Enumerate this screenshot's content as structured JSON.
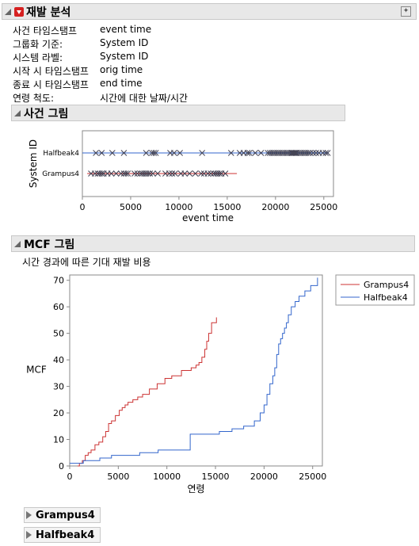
{
  "report": {
    "title": "재발 분석",
    "info": [
      {
        "key": "사건 타임스탬프",
        "value": "event time"
      },
      {
        "key": "그룹화 기준:",
        "value": "System ID"
      },
      {
        "key": "시스템 라벨:",
        "value": "System ID"
      },
      {
        "key": "시작 시 타임스탬프",
        "value": "orig time"
      },
      {
        "key": "종료 시 타임스탬프",
        "value": "end time"
      },
      {
        "key": "연령 척도:",
        "value": "시간에 대한 날짜/시간"
      }
    ]
  },
  "event_section": {
    "title": "사건 그림"
  },
  "mcf_section": {
    "title": "MCF 그림",
    "subtitle": "시간 경과에 따른 기대 재발 비용"
  },
  "groups": [
    {
      "label": "Grampus4"
    },
    {
      "label": "Halfbeak4"
    }
  ],
  "colors": {
    "grampus": "#cc3333",
    "halfbeak": "#3366cc"
  },
  "chart_data": [
    {
      "type": "scatter",
      "title": "",
      "xlabel": "event time",
      "ylabel": "System ID",
      "xlim": [
        0,
        26000
      ],
      "xticks": [
        0,
        5000,
        10000,
        15000,
        20000,
        25000
      ],
      "categories": [
        "Halfbeak4",
        "Grampus4"
      ],
      "series": [
        {
          "name": "Halfbeak4",
          "start": 0,
          "end": 25500,
          "events": [
            1400,
            2000,
            3100,
            4300,
            6600,
            7200,
            7400,
            7600,
            9100,
            9500,
            10100,
            12400,
            15400,
            16300,
            16700,
            17100,
            17300,
            17900,
            18500,
            19200,
            19400,
            19600,
            19800,
            20000,
            20200,
            20400,
            20600,
            20800,
            21000,
            21200,
            21400,
            21600,
            21700,
            21800,
            21900,
            22000,
            22100,
            22200,
            22400,
            22600,
            22800,
            23000,
            23200,
            23400,
            23600,
            23900,
            24200,
            24500,
            24900,
            25200,
            25400
          ]
        },
        {
          "name": "Grampus4",
          "start": 500,
          "end": 16000,
          "events": [
            900,
            1300,
            1600,
            1800,
            2000,
            2200,
            2600,
            3000,
            3500,
            4000,
            4300,
            4500,
            4700,
            5400,
            5700,
            6000,
            6200,
            6400,
            6600,
            6800,
            7000,
            7300,
            7800,
            8600,
            9000,
            9300,
            9600,
            10200,
            10600,
            11100,
            11700,
            12300,
            12600,
            13000,
            13300,
            13600,
            13800,
            14000,
            14200,
            14400,
            14800
          ]
        }
      ]
    },
    {
      "type": "line",
      "title": "",
      "xlabel": "연령",
      "ylabel": "MCF",
      "xlim": [
        0,
        26000
      ],
      "ylim": [
        0,
        72
      ],
      "xticks": [
        0,
        5000,
        10000,
        15000,
        20000,
        25000
      ],
      "yticks": [
        0,
        10,
        20,
        30,
        40,
        50,
        60,
        70
      ],
      "legend_position": "top-right",
      "series": [
        {
          "name": "Grampus4",
          "x": [
            800,
            1000,
            1300,
            1600,
            1900,
            2200,
            2600,
            3000,
            3400,
            3700,
            4000,
            4300,
            4700,
            5100,
            5400,
            5700,
            6000,
            6500,
            7000,
            7500,
            8200,
            9000,
            9800,
            10500,
            11500,
            12500,
            13000,
            13300,
            13600,
            13900,
            14100,
            14300,
            14600,
            15100
          ],
          "y": [
            0,
            1,
            2,
            4,
            5,
            6,
            8,
            9,
            11,
            13,
            16,
            17,
            19,
            21,
            22,
            23,
            24,
            25,
            26,
            27,
            29,
            31,
            33,
            34,
            36,
            37,
            38,
            39,
            41,
            44,
            47,
            50,
            54,
            56
          ]
        },
        {
          "name": "Halfbeak4",
          "x": [
            0,
            1400,
            3100,
            4300,
            7200,
            9100,
            12400,
            15400,
            16700,
            17900,
            19000,
            19600,
            20000,
            20300,
            20600,
            20900,
            21100,
            21300,
            21500,
            21700,
            21900,
            22100,
            22300,
            22500,
            22800,
            23200,
            23600,
            24200,
            24800,
            25500
          ],
          "y": [
            1,
            2,
            3,
            4,
            5,
            6,
            12,
            13,
            14,
            15,
            17,
            20,
            23,
            27,
            31,
            34,
            37,
            42,
            46,
            48,
            50,
            52,
            54,
            57,
            60,
            62,
            64,
            66,
            68,
            71
          ]
        }
      ]
    }
  ]
}
